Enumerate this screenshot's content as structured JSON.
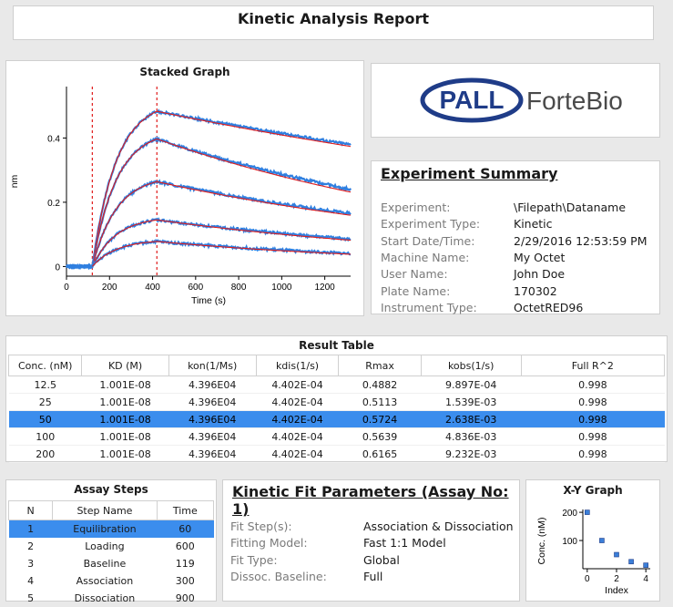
{
  "report": {
    "title": "Kinetic Analysis Report"
  },
  "stacked_graph": {
    "title": "Stacked Graph",
    "xlabel": "Time (s)",
    "ylabel": "nm",
    "xticks": [
      "0",
      "200",
      "400",
      "600",
      "800",
      "1000",
      "1200"
    ],
    "yticks": [
      "0",
      "0.2",
      "0.4"
    ]
  },
  "logo": {
    "brand": "PALL",
    "product": "ForteBio"
  },
  "experiment_summary": {
    "title": "Experiment Summary",
    "rows": [
      {
        "label": "Experiment:",
        "value": "\\Filepath\\Dataname"
      },
      {
        "label": "Experiment Type:",
        "value": "Kinetic"
      },
      {
        "label": "Start Date/Time:",
        "value": "2/29/2016 12:53:59 PM"
      },
      {
        "label": "Machine Name:",
        "value": "My Octet"
      },
      {
        "label": "User Name:",
        "value": "John Doe"
      },
      {
        "label": "Plate Name:",
        "value": "170302"
      },
      {
        "label": "Instrument Type:",
        "value": "OctetRED96"
      }
    ]
  },
  "result_table": {
    "title": "Result Table",
    "columns": [
      "Conc. (nM)",
      "KD (M)",
      "kon(1/Ms)",
      "kdis(1/s)",
      "Rmax",
      "kobs(1/s)",
      "Full R^2"
    ],
    "rows": [
      [
        "12.5",
        "1.001E-08",
        "4.396E04",
        "4.402E-04",
        "0.4882",
        "9.897E-04",
        "0.998"
      ],
      [
        "25",
        "1.001E-08",
        "4.396E04",
        "4.402E-04",
        "0.5113",
        "1.539E-03",
        "0.998"
      ],
      [
        "50",
        "1.001E-08",
        "4.396E04",
        "4.402E-04",
        "0.5724",
        "2.638E-03",
        "0.998"
      ],
      [
        "100",
        "1.001E-08",
        "4.396E04",
        "4.402E-04",
        "0.5639",
        "4.836E-03",
        "0.998"
      ],
      [
        "200",
        "1.001E-08",
        "4.396E04",
        "4.402E-04",
        "0.6165",
        "9.232E-03",
        "0.998"
      ]
    ],
    "selected_row": 2
  },
  "assay_steps": {
    "title": "Assay Steps",
    "columns": [
      "N",
      "Step Name",
      "Time"
    ],
    "rows": [
      [
        "1",
        "Equilibration",
        "60"
      ],
      [
        "2",
        "Loading",
        "600"
      ],
      [
        "3",
        "Baseline",
        "119"
      ],
      [
        "4",
        "Association",
        "300"
      ],
      [
        "5",
        "Dissociation",
        "900"
      ]
    ],
    "selected_row": 0
  },
  "kinetic_fit": {
    "title": "Kinetic Fit Parameters (Assay No: 1)",
    "rows": [
      {
        "label": "Fit Step(s):",
        "value": "Association & Dissociation"
      },
      {
        "label": "Fitting Model:",
        "value": "Fast 1:1 Model"
      },
      {
        "label": "Fit Type:",
        "value": "Global"
      },
      {
        "label": "Dissoc. Baseline:",
        "value": "Full"
      }
    ]
  },
  "xy_graph": {
    "title": "X-Y Graph",
    "xlabel": "Index",
    "ylabel": "Conc. (nM)",
    "xticks": [
      "0",
      "2",
      "4"
    ],
    "yticks": [
      "100",
      "200"
    ]
  },
  "chart_data": [
    {
      "type": "line",
      "title": "Stacked Graph",
      "xlabel": "Time (s)",
      "ylabel": "nm",
      "xlim": [
        0,
        1320
      ],
      "ylim": [
        -0.03,
        0.56
      ],
      "markers_x": [
        120,
        420
      ],
      "series": [
        {
          "values_at_x": [
            0,
            120,
            420,
            1320
          ],
          "y": [
            0,
            0,
            0.483,
            0.38
          ]
        },
        {
          "values_at_x": [
            0,
            120,
            420,
            1320
          ],
          "y": [
            0,
            0,
            0.397,
            0.24
          ]
        },
        {
          "values_at_x": [
            0,
            120,
            420,
            1320
          ],
          "y": [
            0,
            0,
            0.264,
            0.165
          ]
        },
        {
          "values_at_x": [
            0,
            120,
            420,
            1320
          ],
          "y": [
            0,
            0,
            0.145,
            0.085
          ]
        },
        {
          "values_at_x": [
            0,
            120,
            420,
            1320
          ],
          "y": [
            0,
            0,
            0.078,
            0.04
          ]
        }
      ],
      "colors": {
        "raw": "#2f7fe0",
        "fit": "#e01b1b",
        "marker": "#e01b1b"
      }
    },
    {
      "type": "scatter",
      "title": "X-Y Graph",
      "xlabel": "Index",
      "ylabel": "Conc. (nM)",
      "xlim": [
        -0.3,
        4.3
      ],
      "ylim": [
        0,
        210
      ],
      "x": [
        0,
        1,
        2,
        3,
        4
      ],
      "y": [
        200,
        100,
        50,
        25,
        12.5
      ]
    }
  ]
}
